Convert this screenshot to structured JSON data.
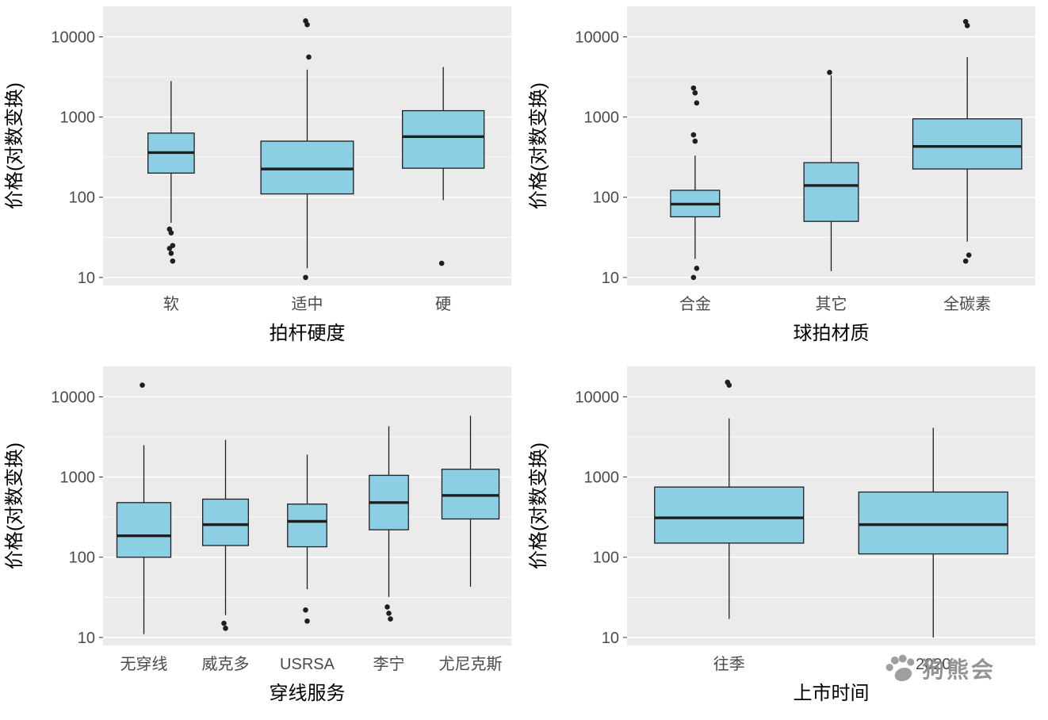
{
  "figure": {
    "ylabel": "价格(对数变换)",
    "ytick_labels": [
      "10",
      "100",
      "1000",
      "10000"
    ]
  },
  "style": {
    "panel_bg": "#EBEBEB",
    "grid_color": "#FFFFFF",
    "box_fill": "#8CCEE4",
    "box_stroke": "#1F1F1F",
    "tick_label_color": "#4A4A4A",
    "minor_breaks_log10": [
      1.5,
      2.5,
      3.5
    ]
  },
  "watermark": {
    "text": "狗熊会",
    "icon": "paw-icon",
    "color": "#8E8E8E"
  },
  "chart_data": [
    {
      "type": "boxplot",
      "yscale": "log10",
      "xlabel": "拍杆硬度",
      "ylabel": "价格(对数变换)",
      "yticks": [
        10,
        100,
        1000,
        10000
      ],
      "ytick_labels": [
        "10",
        "100",
        "1000",
        "10000"
      ],
      "ylim": [
        8,
        24000
      ],
      "grid": true,
      "categories": [
        "软",
        "适中",
        "硬"
      ],
      "boxes": [
        {
          "category": "软",
          "whisker_low": 48,
          "q1": 200,
          "median": 360,
          "q3": 630,
          "whisker_high": 2800,
          "outliers": [
            40,
            36,
            25,
            23,
            20,
            16
          ],
          "width": 0.34
        },
        {
          "category": "适中",
          "whisker_low": 13,
          "q1": 110,
          "median": 225,
          "q3": 500,
          "whisker_high": 3900,
          "outliers": [
            15800,
            14200,
            5600,
            10
          ],
          "width": 0.68
        },
        {
          "category": "硬",
          "whisker_low": 92,
          "q1": 230,
          "median": 570,
          "q3": 1200,
          "whisker_high": 4200,
          "outliers": [
            15
          ],
          "width": 0.6
        }
      ]
    },
    {
      "type": "boxplot",
      "yscale": "log10",
      "xlabel": "球拍材质",
      "ylabel": "价格(对数变换)",
      "yticks": [
        10,
        100,
        1000,
        10000
      ],
      "ytick_labels": [
        "10",
        "100",
        "1000",
        "10000"
      ],
      "ylim": [
        8,
        24000
      ],
      "grid": true,
      "categories": [
        "合金",
        "其它",
        "全碳素"
      ],
      "boxes": [
        {
          "category": "合金",
          "whisker_low": 17,
          "q1": 57,
          "median": 82,
          "q3": 122,
          "whisker_high": 330,
          "outliers": [
            2300,
            2000,
            1500,
            600,
            500,
            13,
            10
          ],
          "width": 0.36
        },
        {
          "category": "其它",
          "whisker_low": 12,
          "q1": 50,
          "median": 140,
          "q3": 270,
          "whisker_high": 3300,
          "outliers": [
            3600
          ],
          "width": 0.4
        },
        {
          "category": "全碳素",
          "whisker_low": 28,
          "q1": 225,
          "median": 430,
          "q3": 950,
          "whisker_high": 5600,
          "outliers": [
            15500,
            13800,
            19,
            16
          ],
          "width": 0.8
        }
      ]
    },
    {
      "type": "boxplot",
      "yscale": "log10",
      "xlabel": "穿线服务",
      "ylabel": "价格(对数变换)",
      "yticks": [
        10,
        100,
        1000,
        10000
      ],
      "ytick_labels": [
        "10",
        "100",
        "1000",
        "10000"
      ],
      "ylim": [
        8,
        24000
      ],
      "grid": true,
      "categories": [
        "无穿线",
        "威克多",
        "USRSA",
        "李宁",
        "尤尼克斯"
      ],
      "boxes": [
        {
          "category": "无穿线",
          "whisker_low": 11,
          "q1": 100,
          "median": 185,
          "q3": 480,
          "whisker_high": 2500,
          "outliers": [
            14000
          ],
          "width": 0.66
        },
        {
          "category": "威克多",
          "whisker_low": 19,
          "q1": 140,
          "median": 255,
          "q3": 530,
          "whisker_high": 2900,
          "outliers": [
            15,
            13
          ],
          "width": 0.56
        },
        {
          "category": "USRSA",
          "whisker_low": 40,
          "q1": 135,
          "median": 280,
          "q3": 460,
          "whisker_high": 1900,
          "outliers": [
            22,
            16
          ],
          "width": 0.48
        },
        {
          "category": "李宁",
          "whisker_low": 32,
          "q1": 220,
          "median": 480,
          "q3": 1050,
          "whisker_high": 4300,
          "outliers": [
            24,
            20,
            17
          ],
          "width": 0.48
        },
        {
          "category": "尤尼克斯",
          "whisker_low": 43,
          "q1": 300,
          "median": 590,
          "q3": 1250,
          "whisker_high": 5800,
          "outliers": [],
          "width": 0.7
        }
      ]
    },
    {
      "type": "boxplot",
      "yscale": "log10",
      "xlabel": "上市时间",
      "ylabel": "价格(对数变换)",
      "yticks": [
        10,
        100,
        1000,
        10000
      ],
      "ytick_labels": [
        "10",
        "100",
        "1000",
        "10000"
      ],
      "ylim": [
        8,
        24000
      ],
      "grid": true,
      "categories": [
        "往季",
        "2020"
      ],
      "boxes": [
        {
          "category": "往季",
          "whisker_low": 17,
          "q1": 150,
          "median": 310,
          "q3": 750,
          "whisker_high": 5400,
          "outliers": [
            15200,
            14000
          ],
          "width": 0.73
        },
        {
          "category": "2020",
          "whisker_low": 10,
          "q1": 110,
          "median": 255,
          "q3": 650,
          "whisker_high": 4100,
          "outliers": [],
          "width": 0.73
        }
      ]
    }
  ]
}
